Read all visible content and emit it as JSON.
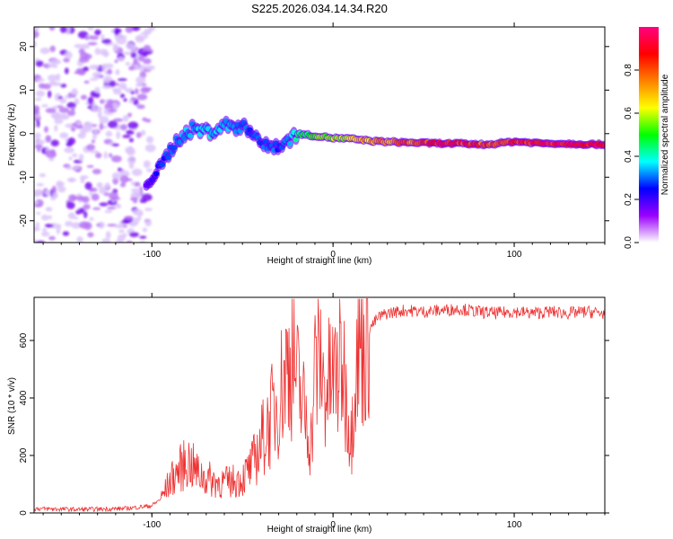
{
  "title": "S225.2026.034.14.34.R20",
  "chart_data": [
    {
      "type": "heatmap",
      "xlabel": "Height of straight line (km)",
      "ylabel": "Frequency (Hz)",
      "xlim": [
        -165,
        150
      ],
      "ylim": [
        -25,
        24.5
      ],
      "xticks": [
        -100,
        0,
        100
      ],
      "xtick_labels": [
        "-100",
        "0",
        "100"
      ],
      "yticks": [
        -20,
        -10,
        0,
        10,
        20
      ],
      "ytick_labels": [
        "-20",
        "-10",
        "0",
        "10",
        "20"
      ],
      "colorbar": {
        "label": "Normalized spectral amplitude",
        "range": [
          0,
          1
        ],
        "ticks": [
          0.0,
          0.2,
          0.4,
          0.6,
          0.8
        ],
        "tick_labels": [
          "0.0",
          "0.2",
          "0.4",
          "0.6",
          "0.8"
        ],
        "colors": [
          "#ffffff",
          "#9b00ff",
          "#0000ff",
          "#00ffff",
          "#00ff00",
          "#ffff00",
          "#ff8000",
          "#ff0000",
          "#ff0080"
        ]
      },
      "ridge": [
        {
          "x": -103,
          "freq": -11,
          "amp": 0.18
        },
        {
          "x": -97,
          "freq": -9,
          "amp": 0.25
        },
        {
          "x": -90,
          "freq": -4,
          "amp": 0.3
        },
        {
          "x": -85,
          "freq": -1,
          "amp": 0.35
        },
        {
          "x": -78,
          "freq": 1,
          "amp": 0.35
        },
        {
          "x": -68,
          "freq": 0.5,
          "amp": 0.4
        },
        {
          "x": -58,
          "freq": 2,
          "amp": 0.35
        },
        {
          "x": -45,
          "freq": 1,
          "amp": 0.3
        },
        {
          "x": -38,
          "freq": -3,
          "amp": 0.3
        },
        {
          "x": -28,
          "freq": -2.5,
          "amp": 0.3
        },
        {
          "x": -20,
          "freq": 0,
          "amp": 0.45
        },
        {
          "x": -10,
          "freq": -0.5,
          "amp": 0.55
        },
        {
          "x": 0,
          "freq": -1,
          "amp": 0.6
        },
        {
          "x": 10,
          "freq": -1.2,
          "amp": 0.65
        },
        {
          "x": 25,
          "freq": -1.8,
          "amp": 0.75
        },
        {
          "x": 40,
          "freq": -2,
          "amp": 0.8
        },
        {
          "x": 55,
          "freq": -2.2,
          "amp": 0.9
        },
        {
          "x": 70,
          "freq": -2.3,
          "amp": 0.9
        },
        {
          "x": 85,
          "freq": -2.5,
          "amp": 0.85
        },
        {
          "x": 100,
          "freq": -1.8,
          "amp": 0.9
        },
        {
          "x": 115,
          "freq": -2.2,
          "amp": 0.92
        },
        {
          "x": 130,
          "freq": -2.3,
          "amp": 0.95
        },
        {
          "x": 150,
          "freq": -2.5,
          "amp": 0.95
        }
      ]
    },
    {
      "type": "line",
      "xlabel": "Height of straight line (km)",
      "ylabel": "SNR (10 * v/v)",
      "xlim": [
        -165,
        150
      ],
      "ylim": [
        0,
        750
      ],
      "xticks": [
        -100,
        0,
        100
      ],
      "xtick_labels": [
        "-100",
        "0",
        "100"
      ],
      "yticks": [
        0,
        200,
        400,
        600
      ],
      "ytick_labels": [
        "0",
        "200",
        "400",
        "600"
      ],
      "color": "#ee3333",
      "x": [
        -165,
        -140,
        -115,
        -100,
        -95,
        -90,
        -85,
        -80,
        -75,
        -70,
        -65,
        -60,
        -55,
        -50,
        -45,
        -40,
        -35,
        -30,
        -25,
        -22,
        -20,
        -15,
        -12,
        -10,
        -7,
        -5,
        0,
        5,
        8,
        10,
        12,
        15,
        20,
        25,
        30,
        40,
        50,
        60,
        70,
        80,
        90,
        100,
        110,
        120,
        130,
        140,
        150
      ],
      "y": [
        15,
        12,
        15,
        25,
        50,
        110,
        150,
        180,
        140,
        120,
        110,
        105,
        110,
        120,
        160,
        240,
        320,
        400,
        520,
        560,
        460,
        330,
        250,
        500,
        540,
        430,
        460,
        530,
        380,
        250,
        520,
        590,
        640,
        680,
        695,
        705,
        700,
        705,
        710,
        700,
        695,
        700,
        695,
        700,
        695,
        700,
        695
      ]
    }
  ]
}
